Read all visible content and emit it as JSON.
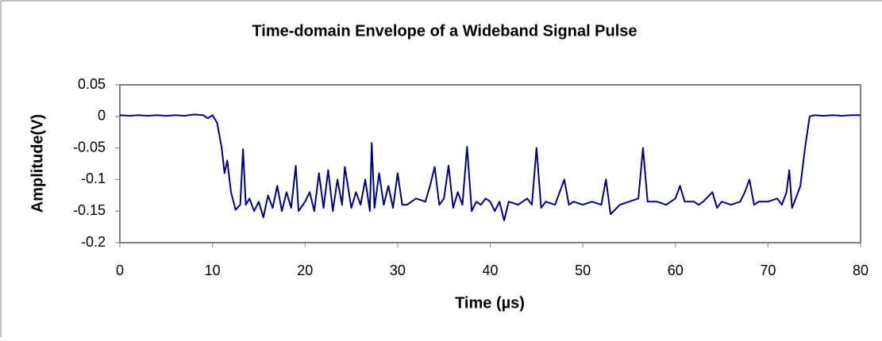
{
  "chart_data": {
    "type": "line",
    "title": "Time-domain Envelope of a Wideband Signal Pulse",
    "x_label": "Time (µs)",
    "y_label": "Amplitude(V)",
    "x": [
      0,
      1,
      2,
      3,
      4,
      5,
      6,
      7,
      8,
      9,
      9.5,
      10,
      10.5,
      11,
      11.3,
      11.6,
      12,
      12.5,
      13,
      13.3,
      13.6,
      14,
      14.5,
      15,
      15.5,
      16,
      16.5,
      17,
      17.5,
      18,
      18.5,
      19,
      19.3,
      20,
      20.5,
      21,
      21.5,
      22,
      22.5,
      23,
      23.5,
      24,
      24.3,
      25,
      25.5,
      26,
      26.5,
      27,
      27.2,
      27.5,
      28,
      28.5,
      29,
      29.5,
      30,
      30.5,
      31,
      32,
      33,
      33.5,
      34,
      34.5,
      35,
      35.5,
      36,
      36.5,
      37,
      37.5,
      38,
      38.5,
      39,
      39.5,
      40,
      40.5,
      41,
      41.5,
      42,
      43,
      44,
      44.5,
      45,
      45.5,
      46,
      47,
      48,
      48.5,
      49,
      50,
      51,
      52,
      52.5,
      53,
      54,
      55,
      56,
      56.5,
      57,
      58,
      59,
      60,
      60.5,
      61,
      62,
      62.5,
      63,
      64,
      64.5,
      65,
      66,
      67,
      67.5,
      68,
      68.5,
      69,
      70,
      71,
      71.5,
      72,
      72.3,
      72.6,
      73,
      73.5,
      74,
      74.5,
      75,
      76,
      77,
      78,
      79,
      80
    ],
    "series": [
      {
        "name": "Amplitude",
        "color": "#000080",
        "values": [
          0.002,
          0.001,
          0.002,
          0.001,
          0.002,
          0.001,
          0.002,
          0.001,
          0.003,
          0.002,
          -0.003,
          0.002,
          -0.01,
          -0.05,
          -0.09,
          -0.07,
          -0.12,
          -0.148,
          -0.14,
          -0.052,
          -0.14,
          -0.13,
          -0.15,
          -0.135,
          -0.16,
          -0.125,
          -0.145,
          -0.11,
          -0.15,
          -0.12,
          -0.145,
          -0.078,
          -0.15,
          -0.135,
          -0.12,
          -0.15,
          -0.09,
          -0.145,
          -0.085,
          -0.15,
          -0.1,
          -0.14,
          -0.08,
          -0.145,
          -0.12,
          -0.14,
          -0.1,
          -0.15,
          -0.042,
          -0.145,
          -0.09,
          -0.14,
          -0.11,
          -0.145,
          -0.09,
          -0.14,
          -0.14,
          -0.13,
          -0.135,
          -0.11,
          -0.08,
          -0.14,
          -0.13,
          -0.078,
          -0.145,
          -0.12,
          -0.14,
          -0.048,
          -0.15,
          -0.135,
          -0.14,
          -0.13,
          -0.135,
          -0.15,
          -0.135,
          -0.165,
          -0.135,
          -0.14,
          -0.13,
          -0.14,
          -0.05,
          -0.145,
          -0.135,
          -0.14,
          -0.1,
          -0.14,
          -0.135,
          -0.14,
          -0.135,
          -0.14,
          -0.1,
          -0.155,
          -0.14,
          -0.135,
          -0.13,
          -0.05,
          -0.135,
          -0.135,
          -0.14,
          -0.13,
          -0.11,
          -0.135,
          -0.135,
          -0.14,
          -0.135,
          -0.12,
          -0.145,
          -0.135,
          -0.14,
          -0.135,
          -0.12,
          -0.1,
          -0.14,
          -0.135,
          -0.135,
          -0.13,
          -0.14,
          -0.12,
          -0.085,
          -0.145,
          -0.13,
          -0.11,
          -0.05,
          0.0,
          0.002,
          0.001,
          0.002,
          0.001,
          0.002,
          0.002
        ]
      }
    ],
    "xlim": [
      0,
      80
    ],
    "xticks": [
      0,
      10,
      20,
      30,
      40,
      50,
      60,
      70,
      80
    ],
    "ylim": [
      -0.2,
      0.05
    ],
    "yticks": [
      0.05,
      0,
      -0.05,
      -0.1,
      -0.15,
      -0.2
    ],
    "grid": false
  }
}
